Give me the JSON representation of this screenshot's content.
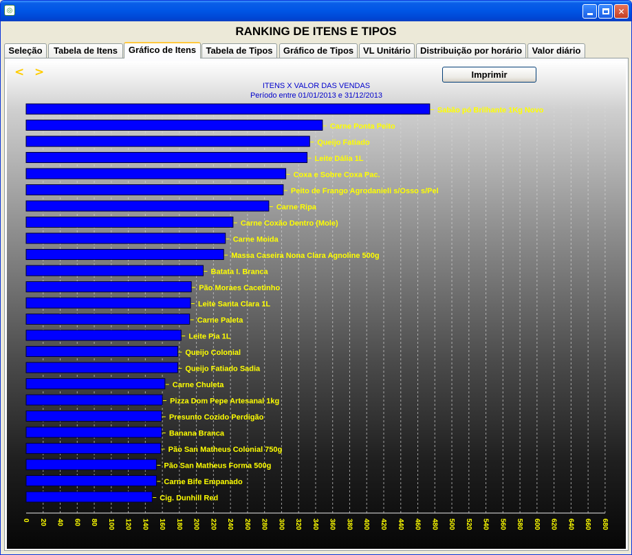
{
  "window": {
    "app_icon": "app-icon"
  },
  "header": {
    "title": "RANKING DE ITENS E TIPOS"
  },
  "tabs": [
    {
      "label": "Seleção"
    },
    {
      "label": "Tabela de Itens"
    },
    {
      "label": "Gráfico de Itens"
    },
    {
      "label": "Tabela de Tipos"
    },
    {
      "label": "Gráfico de Tipos"
    },
    {
      "label": "VL Unitário"
    },
    {
      "label": "Distribuição por horário"
    },
    {
      "label": "Valor diário"
    }
  ],
  "active_tab": "Gráfico de Itens",
  "toolbar": {
    "prev_label": "<",
    "next_label": ">",
    "print_label": "Imprimir"
  },
  "colors": {
    "bar": "#0000ff",
    "label": "#ffff00",
    "title": "#0000cc"
  },
  "chart_data": {
    "type": "bar",
    "orientation": "horizontal",
    "title": "ITENS X VALOR DAS VENDAS",
    "subtitle": "Período entre 01/01/2013 e 31/12/2013",
    "categories": [
      "Sabão pó Brilhante 1Kg Novo",
      "Carne Ponta Peito",
      "Queijo Fatiado",
      "Leite Dália 1L",
      "Coxa e Sobre Coxa Pac.",
      "Peito de Frango Agrodanieli s/Osso s/Pel",
      "Carne Ripa",
      "Carne Coxão Dentro (Mole)",
      "Carne Moida",
      "Massa Caseira Nona Clara Agnoline 500g",
      "Batata I. Branca",
      "Pão Moraes Cacetinho",
      "Leite Santa Clara 1L",
      "Carne Paleta",
      "Leite Pia 1L",
      "Queijo Colonial",
      "Queijo Fatiado Sadia",
      "Carne Chuleta",
      "Pizza Dom Pepe Artesanal 1kg",
      "Presunto Cozido Perdigão",
      "Banana Branca",
      "Pão San Matheus Colonial 750g",
      "Pão San Matheus Forma 500g",
      "Carne Bife Empanado",
      "Cig. Dunhill Red"
    ],
    "values": [
      474,
      348,
      333,
      330,
      305,
      302,
      285,
      243,
      234,
      232,
      208,
      194,
      193,
      192,
      182,
      178,
      178,
      163,
      160,
      159,
      159,
      158,
      153,
      153,
      148
    ],
    "xlim": [
      0,
      680
    ],
    "x_ticks": [
      0,
      20,
      40,
      60,
      80,
      100,
      120,
      140,
      160,
      180,
      200,
      220,
      240,
      260,
      280,
      300,
      320,
      340,
      360,
      380,
      400,
      420,
      440,
      460,
      480,
      500,
      520,
      540,
      560,
      580,
      600,
      620,
      640,
      660,
      680
    ],
    "grid": "vertical dashed",
    "legend": "none"
  }
}
